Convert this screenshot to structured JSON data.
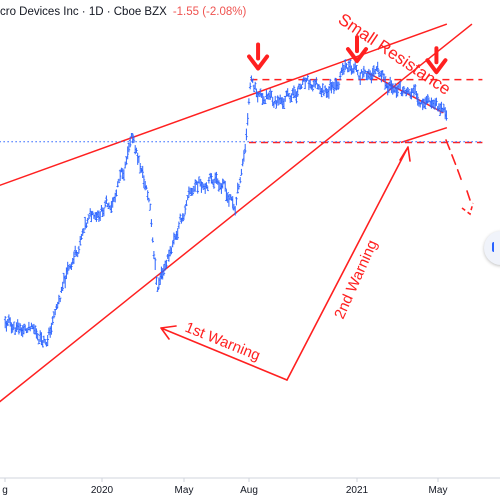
{
  "header": {
    "title_fragment": "cro Devices Inc · 1D · Cboe BZX",
    "change": "-1.55 (-2.08%)"
  },
  "annotations": {
    "warning_1": "1st Warning",
    "warning_2": "2nd Warning",
    "resistance": "Small Resistance"
  },
  "colors": {
    "price": "#2962ff",
    "annotation": "#ff2020",
    "axis_text": "#131722",
    "axis_line": "#d1d4dc",
    "change_negative": "#ef5350"
  },
  "chart_data": {
    "type": "bar",
    "subtype": "ohlc-price-chart",
    "symbol_fragment": "cro Devices Inc",
    "interval": "1D",
    "exchange": "Cboe BZX",
    "x_tick_labels": [
      "g",
      "2020",
      "May",
      "Aug",
      "2021",
      "May"
    ],
    "x_axis_visible_range": [
      "2019-08",
      "2021-06"
    ],
    "price_series_trace_approx": [
      [
        "2019-08-15",
        0.26
      ],
      [
        "2019-09-15",
        0.24
      ],
      [
        "2019-10-15",
        0.22
      ],
      [
        "2019-11-20",
        0.44
      ],
      [
        "2019-12-20",
        0.56
      ],
      [
        "2020-01-20",
        0.6
      ],
      [
        "2020-02-15",
        0.76
      ],
      [
        "2020-03-10",
        0.58
      ],
      [
        "2020-03-20",
        0.36
      ],
      [
        "2020-04-15",
        0.5
      ],
      [
        "2020-05-15",
        0.64
      ],
      [
        "2020-06-15",
        0.66
      ],
      [
        "2020-07-10",
        0.57
      ],
      [
        "2020-07-25",
        0.75
      ],
      [
        "2020-08-01",
        0.92
      ],
      [
        "2020-08-15",
        0.88
      ],
      [
        "2020-09-15",
        0.86
      ],
      [
        "2020-10-15",
        0.9
      ],
      [
        "2020-11-15",
        0.89
      ],
      [
        "2020-12-15",
        0.95
      ],
      [
        "2021-01-15",
        0.94
      ],
      [
        "2021-02-15",
        0.91
      ],
      [
        "2021-03-15",
        0.88
      ],
      [
        "2021-04-20",
        0.87
      ],
      [
        "2021-05-10",
        0.83
      ]
    ],
    "price_series_units": "fraction of chart price range (0 = bottom, 1 = top); the screenshot shows no price axis",
    "legend": "none",
    "grid": false,
    "drawn_lines": [
      {
        "name": "upper channel",
        "style": "solid",
        "from": [
          "2019-08-01",
          0.63
        ],
        "to": [
          "2021-05-10",
          1.07
        ]
      },
      {
        "name": "lower channel",
        "style": "solid",
        "from": [
          "2019-08-01",
          0.04
        ],
        "to": [
          "2021-06-15",
          1.07
        ]
      },
      {
        "name": "resistance",
        "style": "dashed",
        "from": [
          "2020-08-01",
          0.92
        ],
        "to": [
          "2021-06-30",
          0.92
        ]
      },
      {
        "name": "support",
        "style": "dashed",
        "from": [
          "2020-07-30",
          0.75
        ],
        "to": [
          "2021-06-30",
          0.75
        ]
      },
      {
        "name": "small resistance",
        "style": "solid",
        "from": [
          "2021-01-15",
          0.94
        ],
        "to": [
          "2021-05-05",
          0.83
        ]
      },
      {
        "name": "small support",
        "style": "solid",
        "from": [
          "2021-03-05",
          0.75
        ],
        "to": [
          "2021-05-10",
          0.79
        ]
      },
      {
        "name": "last price",
        "style": "dotted",
        "from": [
          "2019-08-01",
          0.752
        ],
        "to": [
          "2021-06-30",
          0.752
        ]
      }
    ],
    "markers": [
      {
        "type": "down-arrow",
        "date": "2020-08-12",
        "level": 0.95
      },
      {
        "type": "down-arrow",
        "date": "2021-01-01",
        "level": 0.97
      },
      {
        "type": "down-arrow",
        "date": "2021-04-25",
        "level": 0.94
      }
    ]
  }
}
